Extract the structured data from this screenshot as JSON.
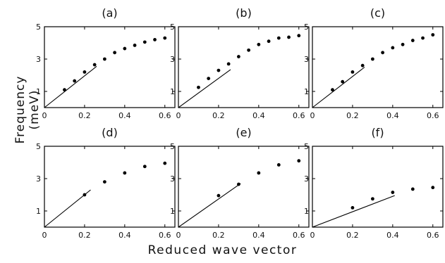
{
  "ylabel": "Frequency (meV)",
  "xlabel": "Reduced wave vector",
  "chart_data": [
    {
      "type": "scatter",
      "title": "(a)",
      "xlim": [
        0,
        0.65
      ],
      "ylim": [
        0,
        5
      ],
      "xticks": [
        "0",
        "0.2",
        "0.4",
        "0.6"
      ],
      "xtick_values": [
        0,
        0.2,
        0.4,
        0.6
      ],
      "yticks": [
        "1",
        "3",
        "5"
      ],
      "ytick_values": [
        1,
        3,
        5
      ],
      "points": {
        "x": [
          0.1,
          0.15,
          0.2,
          0.25,
          0.3,
          0.35,
          0.4,
          0.45,
          0.5,
          0.55,
          0.6
        ],
        "y": [
          1.1,
          1.65,
          2.2,
          2.65,
          3.0,
          3.4,
          3.65,
          3.85,
          4.05,
          4.2,
          4.3
        ]
      },
      "line": {
        "x": [
          0,
          0.26
        ],
        "y": [
          0,
          2.55
        ]
      }
    },
    {
      "type": "scatter",
      "title": "(b)",
      "xlim": [
        0,
        0.65
      ],
      "ylim": [
        0,
        5
      ],
      "xticks": [
        "0",
        "0.2",
        "0.4",
        "0.6"
      ],
      "xtick_values": [
        0,
        0.2,
        0.4,
        0.6
      ],
      "yticks": [
        "1",
        "3",
        "5"
      ],
      "ytick_values": [
        1,
        3,
        5
      ],
      "points": {
        "x": [
          0.1,
          0.15,
          0.2,
          0.25,
          0.3,
          0.35,
          0.4,
          0.45,
          0.5,
          0.55,
          0.6
        ],
        "y": [
          1.25,
          1.8,
          2.3,
          2.7,
          3.15,
          3.55,
          3.9,
          4.1,
          4.3,
          4.35,
          4.45
        ]
      },
      "line": {
        "x": [
          0,
          0.26
        ],
        "y": [
          0,
          2.35
        ]
      }
    },
    {
      "type": "scatter",
      "title": "(c)",
      "xlim": [
        0,
        0.65
      ],
      "ylim": [
        0,
        5
      ],
      "xticks": [
        "0",
        "0.2",
        "0.4",
        "0.6"
      ],
      "xtick_values": [
        0,
        0.2,
        0.4,
        0.6
      ],
      "yticks": [
        "1",
        "3",
        "5"
      ],
      "ytick_values": [
        1,
        3,
        5
      ],
      "points": {
        "x": [
          0.1,
          0.15,
          0.2,
          0.25,
          0.3,
          0.35,
          0.4,
          0.45,
          0.5,
          0.55,
          0.6
        ],
        "y": [
          1.1,
          1.6,
          2.2,
          2.6,
          3.0,
          3.4,
          3.7,
          3.9,
          4.15,
          4.3,
          4.5
        ]
      },
      "line": {
        "x": [
          0,
          0.26
        ],
        "y": [
          0,
          2.5
        ]
      }
    },
    {
      "type": "scatter",
      "title": "(d)",
      "xlim": [
        0,
        0.65
      ],
      "ylim": [
        0,
        5
      ],
      "xticks": [
        "0",
        "0.2",
        "0.4",
        "0.6"
      ],
      "xtick_values": [
        0,
        0.2,
        0.4,
        0.6
      ],
      "yticks": [
        "1",
        "3",
        "5"
      ],
      "ytick_values": [
        1,
        3,
        5
      ],
      "points": {
        "x": [
          0.2,
          0.3,
          0.4,
          0.5,
          0.6
        ],
        "y": [
          2.0,
          2.8,
          3.35,
          3.75,
          3.95
        ]
      },
      "line": {
        "x": [
          0,
          0.23
        ],
        "y": [
          0,
          2.3
        ]
      }
    },
    {
      "type": "scatter",
      "title": "(e)",
      "xlim": [
        0,
        0.65
      ],
      "ylim": [
        0,
        5
      ],
      "xticks": [
        "0",
        "0.2",
        "0.4",
        "0.6"
      ],
      "xtick_values": [
        0,
        0.2,
        0.4,
        0.6
      ],
      "yticks": [
        "1",
        "3",
        "5"
      ],
      "ytick_values": [
        1,
        3,
        5
      ],
      "points": {
        "x": [
          0.2,
          0.3,
          0.4,
          0.5,
          0.6
        ],
        "y": [
          1.95,
          2.65,
          3.35,
          3.85,
          4.1
        ]
      },
      "line": {
        "x": [
          0,
          0.31
        ],
        "y": [
          0,
          2.7
        ]
      }
    },
    {
      "type": "scatter",
      "title": "(f)",
      "xlim": [
        0,
        0.65
      ],
      "ylim": [
        0,
        5
      ],
      "xticks": [
        "0",
        "0.2",
        "0.4",
        "0.6"
      ],
      "xtick_values": [
        0,
        0.2,
        0.4,
        0.6
      ],
      "yticks": [
        "1",
        "3",
        "5"
      ],
      "ytick_values": [
        1,
        3,
        5
      ],
      "points": {
        "x": [
          0.2,
          0.3,
          0.4,
          0.5,
          0.6
        ],
        "y": [
          1.2,
          1.75,
          2.15,
          2.35,
          2.45
        ]
      },
      "line": {
        "x": [
          0,
          0.41
        ],
        "y": [
          0,
          1.95
        ]
      }
    }
  ]
}
